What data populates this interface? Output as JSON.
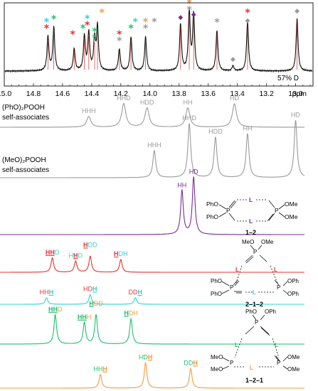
{
  "top_spectrum": {
    "note": "57% D",
    "axis_ticks": [
      "15.0",
      "14.8",
      "14.6",
      "14.4",
      "14.2",
      "14.0",
      "13.8",
      "13.6",
      "13.4",
      "13.2",
      "13.0"
    ],
    "axis_unit": "ppm",
    "peaks": [
      {
        "ppm": 14.7,
        "h": 0.55
      },
      {
        "ppm": 14.66,
        "h": 0.7
      },
      {
        "ppm": 14.52,
        "h": 0.35
      },
      {
        "ppm": 14.45,
        "h": 0.55
      },
      {
        "ppm": 14.42,
        "h": 0.6
      },
      {
        "ppm": 14.38,
        "h": 0.5
      },
      {
        "ppm": 14.36,
        "h": 0.7
      },
      {
        "ppm": 14.21,
        "h": 0.35
      },
      {
        "ppm": 14.13,
        "h": 0.55
      },
      {
        "ppm": 14.03,
        "h": 0.55
      },
      {
        "ppm": 13.79,
        "h": 0.75
      },
      {
        "ppm": 13.73,
        "h": 0.95
      },
      {
        "ppm": 13.7,
        "h": 0.9
      },
      {
        "ppm": 13.54,
        "h": 0.65
      },
      {
        "ppm": 13.43,
        "h": 0.08
      },
      {
        "ppm": 13.33,
        "h": 0.8
      },
      {
        "ppm": 12.99,
        "h": 0.85
      }
    ],
    "markers": [
      {
        "ppm": 14.71,
        "sym": "*",
        "color": "#e8322f",
        "level": 0
      },
      {
        "ppm": 14.71,
        "sym": "*",
        "color": "#2fd4d4",
        "level": 1
      },
      {
        "ppm": 14.66,
        "sym": "*",
        "color": "#1fbf6a",
        "level": 0
      },
      {
        "ppm": 14.53,
        "sym": "*",
        "color": "#e8322f",
        "level": 1
      },
      {
        "ppm": 14.46,
        "sym": "*",
        "color": "#1fbf6a",
        "level": 0
      },
      {
        "ppm": 14.43,
        "sym": "*",
        "color": "#e8322f",
        "level": 0
      },
      {
        "ppm": 14.43,
        "sym": "*",
        "color": "#2fd4d4",
        "level": 1
      },
      {
        "ppm": 14.38,
        "sym": "*",
        "color": "#1fbf6a",
        "level": -1
      },
      {
        "ppm": 14.38,
        "sym": "*",
        "color": "#1fbf6a",
        "level": 0
      },
      {
        "ppm": 14.33,
        "sym": "*",
        "color": "#f59a3c",
        "level": 1
      },
      {
        "ppm": 14.21,
        "sym": "*",
        "color": "#999999",
        "level": 0
      },
      {
        "ppm": 14.21,
        "sym": "*",
        "color": "#e8322f",
        "level": 1
      },
      {
        "ppm": 14.13,
        "sym": "*",
        "color": "#1fbf6a",
        "level": 0
      },
      {
        "ppm": 14.1,
        "sym": "*",
        "color": "#2fd4d4",
        "level": 1
      },
      {
        "ppm": 14.03,
        "sym": "*",
        "color": "#999999",
        "level": 0
      },
      {
        "ppm": 14.03,
        "sym": "*",
        "color": "#f59a3c",
        "level": 1
      },
      {
        "ppm": 13.97,
        "sym": "*",
        "color": "#999999",
        "level": 1
      },
      {
        "ppm": 13.79,
        "sym": "◆",
        "color": "#7b2a9a",
        "level": 0
      },
      {
        "ppm": 13.73,
        "sym": "*",
        "color": "#999999",
        "level": -1
      },
      {
        "ppm": 13.73,
        "sym": "*",
        "color": "#f59a3c",
        "level": 0
      },
      {
        "ppm": 13.73,
        "sym": "◆",
        "color": "#999999",
        "level": 1
      },
      {
        "ppm": 13.7,
        "sym": "◆",
        "color": "#7b2a9a",
        "level": -1
      },
      {
        "ppm": 13.54,
        "sym": "*",
        "color": "#999999",
        "level": 0
      },
      {
        "ppm": 13.43,
        "sym": "◆",
        "color": "#999999",
        "level": 0
      },
      {
        "ppm": 13.33,
        "sym": "◆",
        "color": "#999999",
        "level": -1
      },
      {
        "ppm": 13.33,
        "sym": "*",
        "color": "#e8322f",
        "level": 0
      },
      {
        "ppm": 12.99,
        "sym": "◆",
        "color": "#999999",
        "level": 0
      }
    ]
  },
  "traces": [
    {
      "key": "pho",
      "color": "#9a9a9a",
      "title_line1": "(PhO)₂POOH",
      "title_line2": "self-associates",
      "peaks": [
        {
          "ppm": 14.42,
          "h": 0.25,
          "label": "HHH"
        },
        {
          "ppm": 14.18,
          "h": 0.55,
          "label": "HHD"
        },
        {
          "ppm": 14.02,
          "h": 0.45,
          "label": "HDD"
        },
        {
          "ppm": 13.74,
          "h": 0.45,
          "label": "HH"
        },
        {
          "ppm": 13.42,
          "h": 0.55,
          "label": "HD"
        }
      ]
    },
    {
      "key": "meo",
      "color": "#9a9a9a",
      "title_line1": "(MeO)₂POOH",
      "title_line2": "self-associates",
      "peaks": [
        {
          "ppm": 13.97,
          "h": 0.4,
          "label": "HHH"
        },
        {
          "ppm": 13.73,
          "h": 0.8,
          "label": "HHD"
        },
        {
          "ppm": 13.55,
          "h": 0.6,
          "label": "HDD"
        },
        {
          "ppm": 13.33,
          "h": 0.65,
          "label": "HH"
        },
        {
          "ppm": 13.0,
          "h": 0.85,
          "label": "HD"
        }
      ]
    },
    {
      "key": "c12",
      "color": "#7b2a9a",
      "peaks": [
        {
          "ppm": 13.78,
          "h": 0.65,
          "label": "HH"
        },
        {
          "ppm": 13.7,
          "h": 0.85,
          "label": "HD"
        }
      ]
    },
    {
      "key": "c212",
      "color": "#e8322f",
      "peaks": [
        {
          "ppm": 14.67,
          "h": 0.45,
          "label": "HHD",
          "u": [
            0,
            1
          ],
          "ucolor": "#e8322f",
          "ocolor": "#2fd4d4"
        },
        {
          "ppm": 14.51,
          "h": 0.35,
          "label": "HHD",
          "u": [
            1
          ],
          "ucolor": "#e8322f",
          "ocolor": "#2fd4d4"
        },
        {
          "ppm": 14.41,
          "h": 0.5,
          "label": "HDD",
          "u": [
            0
          ],
          "ucolor": "#e8322f",
          "ocolor": "#2fd4d4",
          "raise": 1
        },
        {
          "ppm": 14.2,
          "h": 0.4,
          "label": "HDH",
          "u": [
            0
          ],
          "ucolor": "#e8322f",
          "ocolor": "#2fd4d4"
        }
      ]
    },
    {
      "key": "c212b",
      "color": "#2fd4d4",
      "peaks": [
        {
          "ppm": 14.71,
          "h": 0.2,
          "label": "HHH",
          "u": [
            2
          ],
          "ucolor": "#2fd4d4",
          "ocolor": "#e8322f"
        },
        {
          "ppm": 14.41,
          "h": 0.3,
          "label": "HDH",
          "u": [
            2
          ],
          "ucolor": "#2fd4d4",
          "ocolor": "#e8322f"
        },
        {
          "ppm": 14.1,
          "h": 0.2,
          "label": "DDH",
          "u": [
            2
          ],
          "ucolor": "#2fd4d4",
          "ocolor": "#e8322f"
        }
      ]
    },
    {
      "key": "c121",
      "color": "#1fbf6a",
      "peaks": [
        {
          "ppm": 14.65,
          "h": 0.75,
          "label": "HHD",
          "u": [
            0,
            1
          ],
          "ucolor": "#1fbf6a",
          "ocolor": "#f59a3c"
        },
        {
          "ppm": 14.45,
          "h": 0.55,
          "label": "HHH",
          "u": [
            0,
            1
          ],
          "ucolor": "#1fbf6a",
          "ocolor": "#f59a3c"
        },
        {
          "ppm": 14.37,
          "h": 0.75,
          "label": "HDD",
          "u": [
            0
          ],
          "ucolor": "#1fbf6a",
          "ocolor": "#f59a3c",
          "raise": 1
        },
        {
          "ppm": 14.13,
          "h": 0.65,
          "label": "HDH",
          "u": [
            0
          ],
          "ucolor": "#1fbf6a",
          "ocolor": "#f59a3c"
        }
      ]
    },
    {
      "key": "c121b",
      "color": "#f59a3c",
      "peaks": [
        {
          "ppm": 14.34,
          "h": 0.35,
          "label": "HHH",
          "u": [
            2
          ],
          "ucolor": "#f59a3c",
          "ocolor": "#1fbf6a"
        },
        {
          "ppm": 14.03,
          "h": 0.65,
          "label": "HDH",
          "u": [
            2
          ],
          "ucolor": "#f59a3c",
          "ocolor": "#1fbf6a"
        },
        {
          "ppm": 13.72,
          "h": 0.5,
          "label": "DDH",
          "u": [
            2
          ],
          "ucolor": "#f59a3c",
          "ocolor": "#1fbf6a"
        }
      ]
    }
  ],
  "structures": {
    "s12": {
      "label": "1–2",
      "pho_top": "PhO",
      "pho_bot": "PhO",
      "p_left": "P",
      "p_right": "P",
      "ome_top": "OMe",
      "ome_bot": "OMe",
      "l": "L"
    },
    "s212": {
      "label": "2–1–2",
      "ome_a": "MeO",
      "ome_b": "OMe",
      "phos": [
        "PhO",
        "PhO",
        "OPh",
        "OPh"
      ],
      "p": "P",
      "l": "L"
    },
    "s121": {
      "label": "1–2–1",
      "pho_a": "PhO",
      "pho_b": "OPh",
      "meos": [
        "MeO",
        "MeO",
        "OMe",
        "OMe"
      ],
      "p": "P",
      "l": "L"
    }
  }
}
